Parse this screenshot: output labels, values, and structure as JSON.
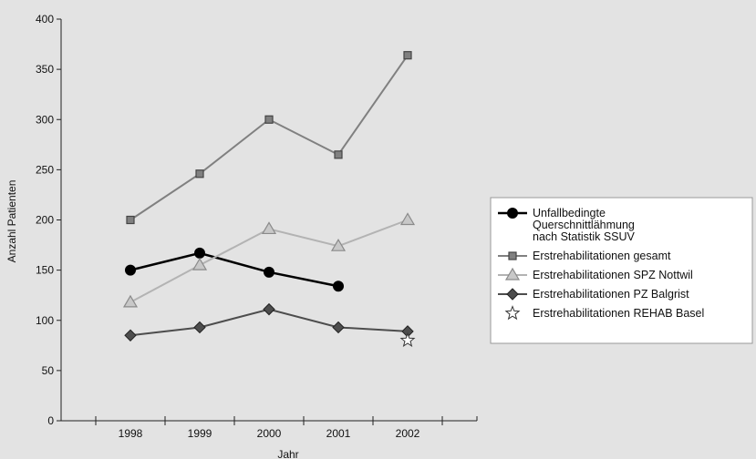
{
  "chart_data": {
    "type": "line",
    "categories": [
      "1998",
      "1999",
      "2000",
      "2001",
      "2002"
    ],
    "xlabel": "Jahr",
    "ylabel": "Anzahl Patienten",
    "ylim": [
      0,
      400
    ],
    "yticks": [
      0,
      50,
      100,
      150,
      200,
      250,
      300,
      350,
      400
    ],
    "grid": false,
    "legend_position": "right",
    "series": [
      {
        "name_lines": [
          "Unfallbedingte",
          "Querschnittlähmung",
          "nach Statistik SSUV"
        ],
        "values": [
          150,
          167,
          148,
          134,
          null
        ],
        "color": "#000000",
        "marker": "circle"
      },
      {
        "name_lines": [
          "Erstrehabilitationen gesamt"
        ],
        "values": [
          200,
          246,
          300,
          265,
          364
        ],
        "color": "#808080",
        "marker": "square"
      },
      {
        "name_lines": [
          "Erstrehabilitationen SPZ Nottwil"
        ],
        "values": [
          118,
          155,
          191,
          174,
          200
        ],
        "color": "#b3b3b3",
        "marker": "triangle"
      },
      {
        "name_lines": [
          "Erstrehabilitationen PZ Balgrist"
        ],
        "values": [
          85,
          93,
          111,
          93,
          89
        ],
        "color": "#4d4d4d",
        "marker": "diamond"
      },
      {
        "name_lines": [
          "Erstrehabilitationen REHAB Basel"
        ],
        "values": [
          null,
          null,
          null,
          null,
          80
        ],
        "color": "#ffffff",
        "marker": "star"
      }
    ]
  }
}
